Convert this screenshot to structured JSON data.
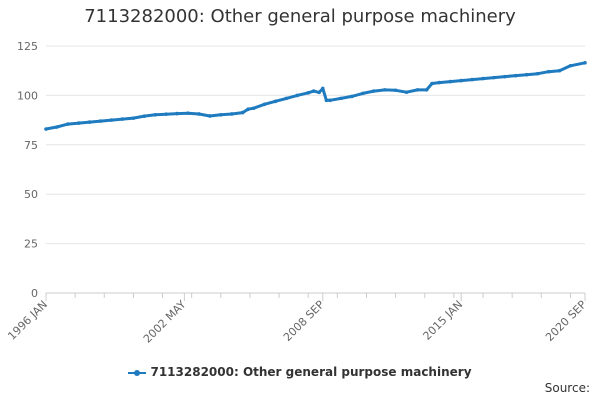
{
  "chart_data": {
    "type": "line",
    "title": "7113282000: Other general purpose machinery",
    "xlabel": "",
    "ylabel": "",
    "ylim": [
      0,
      125
    ],
    "yticks": [
      0,
      25,
      50,
      75,
      100,
      125
    ],
    "x_range": [
      "1996-01",
      "2020-09"
    ],
    "x_tick_labels": [
      "1996 JAN",
      "2002 MAY",
      "2008 SEP",
      "2015 JAN",
      "2020 SEP"
    ],
    "grid": "horizontal",
    "legend_position": "bottom",
    "source_label": "Source:",
    "colors": {
      "series": "#1f7bbf",
      "grid": "#e6e6e6"
    },
    "series": [
      {
        "name": "7113282000: Other general purpose machinery",
        "x": [
          "1996-01",
          "1996-07",
          "1997-01",
          "1997-07",
          "1998-01",
          "1998-07",
          "1999-01",
          "1999-07",
          "2000-01",
          "2000-07",
          "2001-01",
          "2001-07",
          "2002-01",
          "2002-07",
          "2003-01",
          "2003-07",
          "2004-01",
          "2004-07",
          "2005-01",
          "2005-04",
          "2005-07",
          "2006-01",
          "2006-07",
          "2007-01",
          "2007-07",
          "2008-01",
          "2008-04",
          "2008-07",
          "2008-09",
          "2008-11",
          "2009-01",
          "2009-07",
          "2010-01",
          "2010-07",
          "2011-01",
          "2011-07",
          "2012-01",
          "2012-07",
          "2013-01",
          "2013-06",
          "2013-09",
          "2014-01",
          "2014-07",
          "2015-01",
          "2015-07",
          "2016-01",
          "2016-07",
          "2017-01",
          "2017-07",
          "2018-01",
          "2018-07",
          "2019-01",
          "2019-07",
          "2020-01",
          "2020-09"
        ],
        "y": [
          83,
          84,
          85.5,
          86,
          86.5,
          87,
          87.5,
          88,
          88.5,
          89.5,
          90.2,
          90.5,
          90.8,
          91,
          90.6,
          89.6,
          90.2,
          90.6,
          91.3,
          93,
          93.5,
          95.5,
          97,
          98.5,
          100,
          101.3,
          102.2,
          101.5,
          103.5,
          97.5,
          97.5,
          98.5,
          99.5,
          101,
          102.2,
          102.8,
          102.6,
          101.6,
          102.8,
          102.8,
          106,
          106.5,
          107,
          107.5,
          108,
          108.5,
          109,
          109.5,
          110,
          110.5,
          111,
          112,
          112.5,
          115,
          116.5
        ]
      }
    ]
  }
}
